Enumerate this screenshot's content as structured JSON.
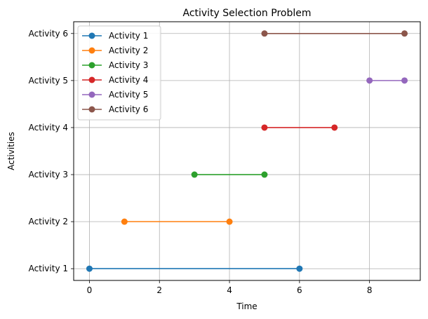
{
  "chart_data": {
    "type": "line",
    "title": "Activity Selection Problem",
    "xlabel": "Time",
    "ylabel": "Activities",
    "xlim": [
      -0.45,
      9.45
    ],
    "ylim": [
      0.75,
      6.25
    ],
    "x_ticks": [
      0,
      2,
      4,
      6,
      8
    ],
    "categories": [
      "Activity 1",
      "Activity 2",
      "Activity 3",
      "Activity 4",
      "Activity 5",
      "Activity 6"
    ],
    "grid": true,
    "legend_position": "top-left",
    "series": [
      {
        "name": "Activity 1",
        "color": "#1f77b4",
        "x": [
          0,
          6
        ],
        "y": [
          1,
          1
        ]
      },
      {
        "name": "Activity 2",
        "color": "#ff7f0e",
        "x": [
          1,
          4
        ],
        "y": [
          2,
          2
        ]
      },
      {
        "name": "Activity 3",
        "color": "#2ca02c",
        "x": [
          3,
          5
        ],
        "y": [
          3,
          3
        ]
      },
      {
        "name": "Activity 4",
        "color": "#d62728",
        "x": [
          5,
          7
        ],
        "y": [
          4,
          4
        ]
      },
      {
        "name": "Activity 5",
        "color": "#9467bd",
        "x": [
          8,
          9
        ],
        "y": [
          5,
          5
        ]
      },
      {
        "name": "Activity 6",
        "color": "#8c564b",
        "x": [
          5,
          9
        ],
        "y": [
          6,
          6
        ]
      }
    ]
  }
}
